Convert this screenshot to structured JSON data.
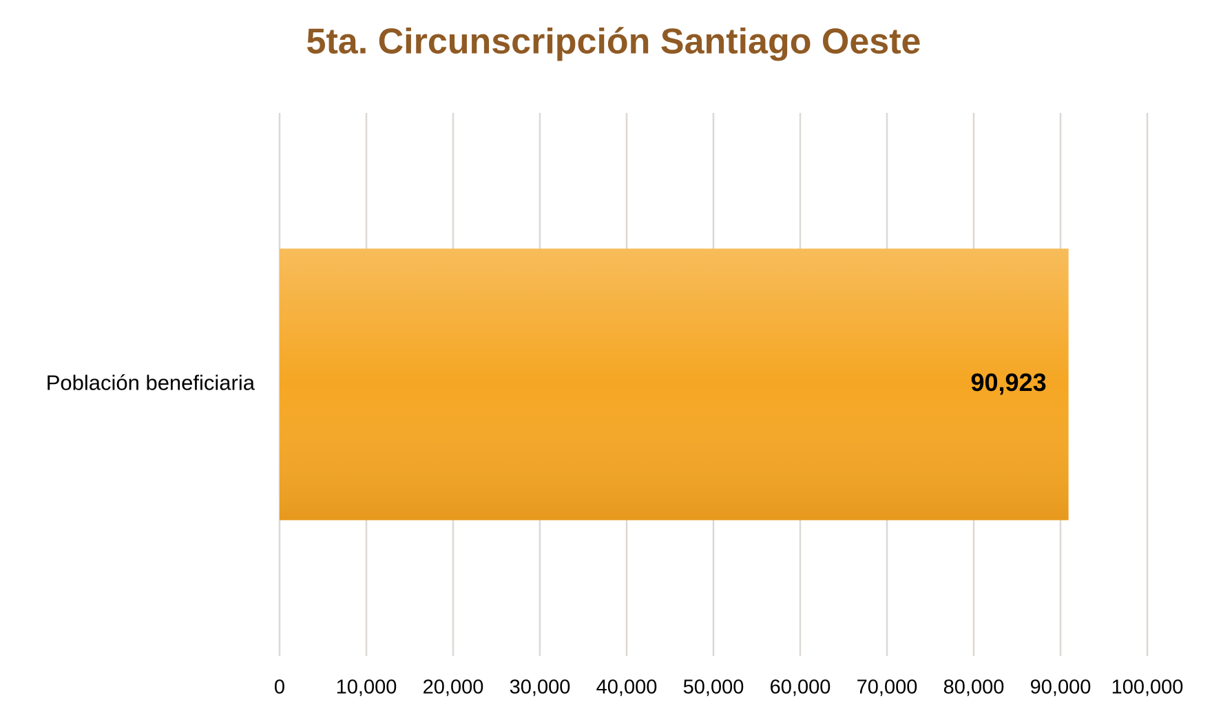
{
  "chart_data": {
    "type": "bar",
    "orientation": "horizontal",
    "title": "5ta. Circunscripción Santiago Oeste",
    "categories": [
      "Población beneficiaria"
    ],
    "values": [
      90923
    ],
    "value_labels": [
      "90,923"
    ],
    "color": "#f5a623",
    "xlim": [
      0,
      100000
    ],
    "xticks": [
      0,
      {
        "value": 10000,
        "label": "10,000"
      },
      {
        "value": 20000,
        "label": "20,000"
      },
      {
        "value": 30000,
        "label": "30,000"
      },
      {
        "value": 40000,
        "label": "40,000"
      },
      {
        "value": 50000,
        "label": "50,000"
      },
      {
        "value": 60000,
        "label": "60,000"
      },
      {
        "value": 70000,
        "label": "70,000"
      },
      {
        "value": 80000,
        "label": "80,000"
      },
      {
        "value": 90000,
        "label": "90,000"
      },
      {
        "value": 100000,
        "label": "100,000"
      }
    ],
    "grid": true
  }
}
